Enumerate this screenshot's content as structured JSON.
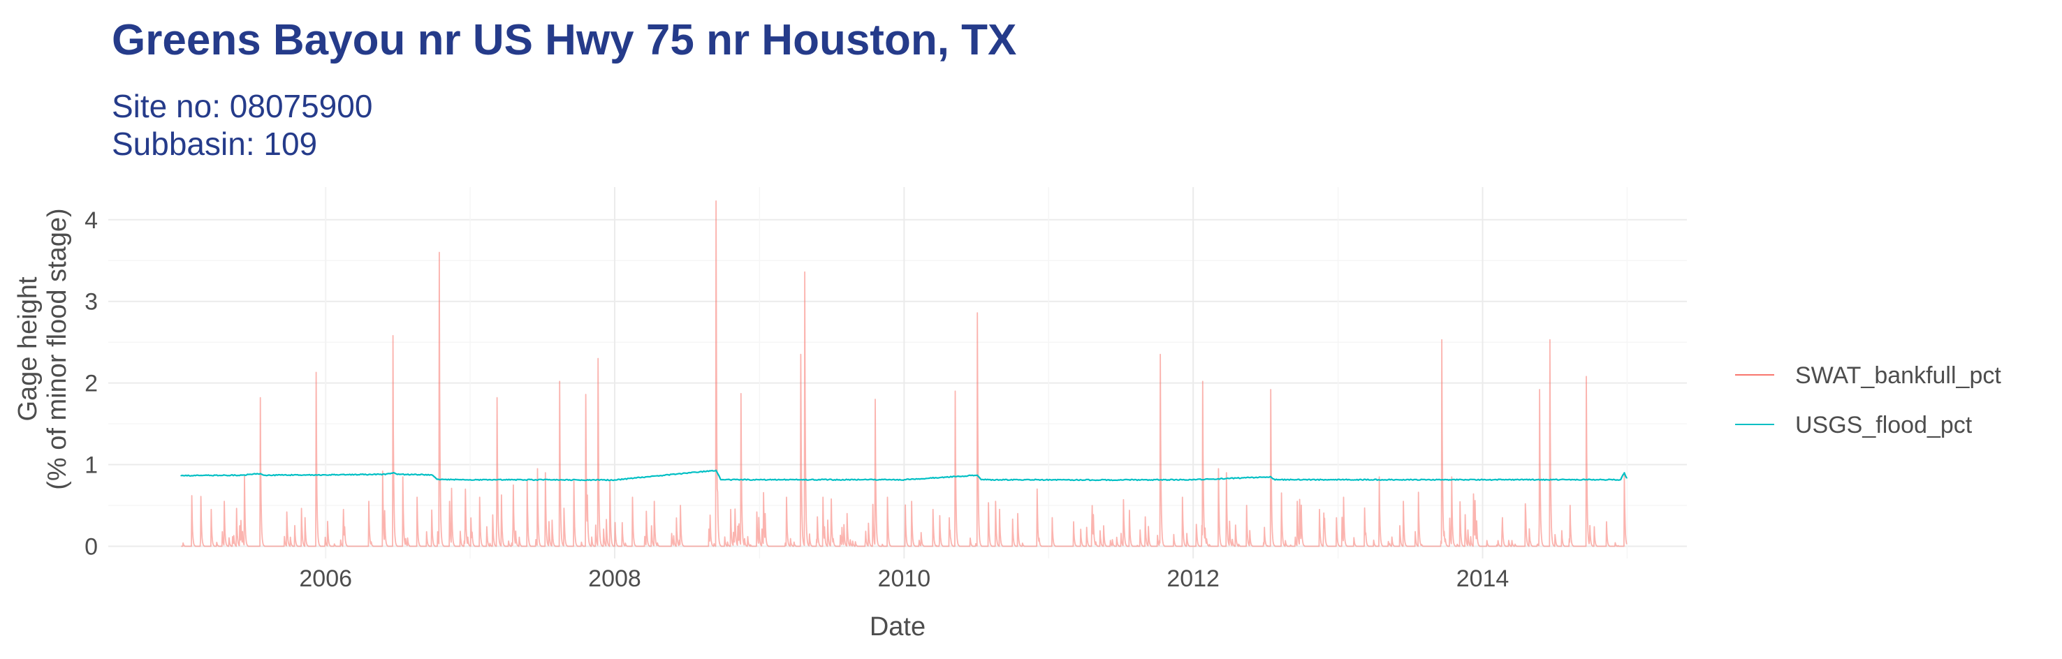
{
  "colors": {
    "title": "#253b8a",
    "swat": "#f8766d",
    "usgs": "#00bfc4"
  },
  "chart_data": {
    "type": "line",
    "title": "Greens Bayou nr US Hwy 75 nr Houston, TX",
    "subtitle": [
      "Site no: 08075900",
      "Subbasin: 109"
    ],
    "xlabel": "Date",
    "ylabel": [
      "Gage height",
      "(% of minor flood stage)"
    ],
    "x_ticks": [
      "2006",
      "2008",
      "2010",
      "2012",
      "2014"
    ],
    "y_ticks": [
      "0",
      "1",
      "2",
      "3",
      "4"
    ],
    "xlim": [
      "2004-07-01",
      "2015-06-01"
    ],
    "ylim": [
      -0.15,
      4.4
    ],
    "grid": true,
    "legend_position": "right",
    "series": [
      {
        "name": "SWAT_bankfull_pct",
        "color": "#f8766d",
        "opacity": 0.55,
        "peaks": [
          [
            "2005-01-28",
            0.62
          ],
          [
            "2005-02-20",
            0.61
          ],
          [
            "2005-03-18",
            0.45
          ],
          [
            "2005-04-20",
            0.55
          ],
          [
            "2005-06-10",
            0.86
          ],
          [
            "2005-07-20",
            1.82
          ],
          [
            "2005-09-25",
            0.42
          ],
          [
            "2005-11-10",
            0.35
          ],
          [
            "2005-12-08",
            2.13
          ],
          [
            "2006-02-15",
            0.45
          ],
          [
            "2006-04-20",
            0.55
          ],
          [
            "2006-05-25",
            0.92
          ],
          [
            "2006-06-20",
            2.58
          ],
          [
            "2006-07-15",
            0.85
          ],
          [
            "2006-08-20",
            0.6
          ],
          [
            "2006-10-15",
            3.6
          ],
          [
            "2006-11-10",
            0.55
          ],
          [
            "2006-12-20",
            0.7
          ],
          [
            "2007-01-25",
            0.6
          ],
          [
            "2007-03-10",
            1.82
          ],
          [
            "2007-04-20",
            0.75
          ],
          [
            "2007-05-25",
            0.8
          ],
          [
            "2007-06-20",
            0.95
          ],
          [
            "2007-07-10",
            0.9
          ],
          [
            "2007-08-15",
            2.02
          ],
          [
            "2007-09-20",
            0.8
          ],
          [
            "2007-10-20",
            1.86
          ],
          [
            "2007-11-20",
            2.3
          ],
          [
            "2007-12-20",
            0.8
          ],
          [
            "2008-02-15",
            0.6
          ],
          [
            "2008-04-10",
            0.55
          ],
          [
            "2008-06-15",
            0.5
          ],
          [
            "2008-09-13",
            4.23
          ],
          [
            "2008-10-20",
            0.45
          ],
          [
            "2008-11-15",
            1.87
          ],
          [
            "2009-01-15",
            0.4
          ],
          [
            "2009-03-10",
            0.6
          ],
          [
            "2009-04-15",
            2.35
          ],
          [
            "2009-04-25",
            3.36
          ],
          [
            "2009-06-10",
            0.6
          ],
          [
            "2009-08-10",
            0.4
          ],
          [
            "2009-10-20",
            1.8
          ],
          [
            "2009-11-20",
            0.6
          ],
          [
            "2010-01-20",
            0.55
          ],
          [
            "2010-03-15",
            0.45
          ],
          [
            "2010-05-10",
            1.9
          ],
          [
            "2010-07-05",
            2.86
          ],
          [
            "2010-08-20",
            0.55
          ],
          [
            "2010-10-15",
            0.4
          ],
          [
            "2011-01-10",
            0.35
          ],
          [
            "2011-03-05",
            0.3
          ],
          [
            "2011-05-20",
            0.25
          ],
          [
            "2011-08-20",
            0.2
          ],
          [
            "2011-10-10",
            2.35
          ],
          [
            "2011-12-05",
            0.6
          ],
          [
            "2012-01-25",
            2.02
          ],
          [
            "2012-03-05",
            0.95
          ],
          [
            "2012-03-25",
            0.9
          ],
          [
            "2012-05-15",
            0.5
          ],
          [
            "2012-07-15",
            1.92
          ],
          [
            "2012-09-20",
            0.55
          ],
          [
            "2012-11-15",
            0.45
          ],
          [
            "2013-01-15",
            0.6
          ],
          [
            "2013-04-15",
            0.85
          ],
          [
            "2013-06-15",
            0.55
          ],
          [
            "2013-09-20",
            2.53
          ],
          [
            "2013-10-15",
            0.85
          ],
          [
            "2013-12-10",
            0.45
          ],
          [
            "2014-02-20",
            0.35
          ],
          [
            "2014-04-20",
            0.4
          ],
          [
            "2014-05-25",
            1.92
          ],
          [
            "2014-06-20",
            2.53
          ],
          [
            "2014-08-10",
            0.5
          ],
          [
            "2014-09-20",
            2.08
          ],
          [
            "2014-11-10",
            0.3
          ],
          [
            "2014-12-25",
            0.88
          ]
        ]
      },
      {
        "name": "USGS_flood_pct",
        "color": "#00bfc4",
        "opacity": 1,
        "points": [
          [
            "2005-01-01",
            0.865
          ],
          [
            "2005-06-01",
            0.87
          ],
          [
            "2005-07-20",
            0.89
          ],
          [
            "2005-08-01",
            0.87
          ],
          [
            "2006-01-01",
            0.875
          ],
          [
            "2006-06-01",
            0.88
          ],
          [
            "2006-06-20",
            0.9
          ],
          [
            "2006-07-01",
            0.88
          ],
          [
            "2006-09-25",
            0.875
          ],
          [
            "2006-10-10",
            0.82
          ],
          [
            "2007-01-01",
            0.815
          ],
          [
            "2008-01-01",
            0.812
          ],
          [
            "2008-09-13",
            0.93
          ],
          [
            "2008-09-25",
            0.815
          ],
          [
            "2009-06-01",
            0.815
          ],
          [
            "2010-01-01",
            0.815
          ],
          [
            "2010-07-05",
            0.87
          ],
          [
            "2010-07-15",
            0.815
          ],
          [
            "2011-06-01",
            0.812
          ],
          [
            "2012-01-01",
            0.815
          ],
          [
            "2012-07-15",
            0.85
          ],
          [
            "2012-07-25",
            0.815
          ],
          [
            "2013-06-01",
            0.815
          ],
          [
            "2014-01-01",
            0.815
          ],
          [
            "2014-12-15",
            0.815
          ],
          [
            "2014-12-25",
            0.9
          ],
          [
            "2014-12-31",
            0.83
          ]
        ]
      }
    ]
  }
}
